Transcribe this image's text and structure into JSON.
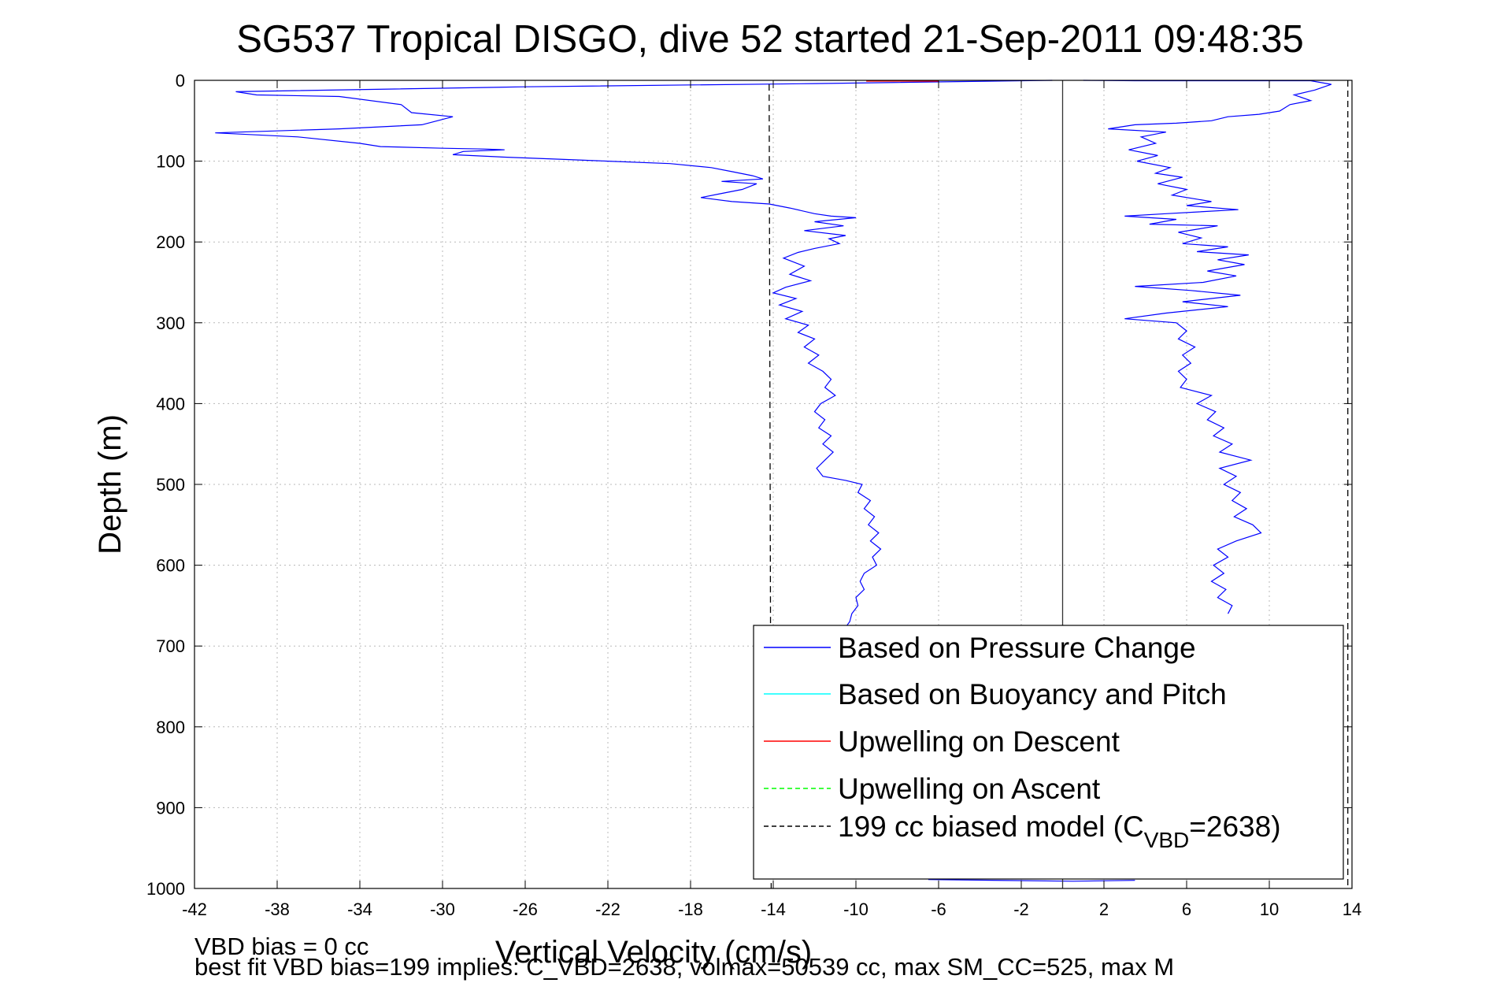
{
  "chart_data": {
    "type": "line",
    "title": "SG537 Tropical DISGO, dive 52 started 21-Sep-2011 09:48:35",
    "xlabel": "Vertical Velocity (cm/s)",
    "ylabel": "Depth (m)",
    "xlim": [
      -42,
      14
    ],
    "ylim": [
      0,
      1000
    ],
    "y_reversed": true,
    "grid": true,
    "x_ticks": [
      -42,
      -38,
      -34,
      -30,
      -26,
      -22,
      -18,
      -14,
      -10,
      -6,
      -2,
      2,
      6,
      10,
      14
    ],
    "y_ticks": [
      0,
      100,
      200,
      300,
      400,
      500,
      600,
      700,
      800,
      900,
      1000
    ],
    "legend_position": "bottom-right",
    "legend": [
      {
        "label": "Based on Pressure Change",
        "color": "#0000ff",
        "dash": "solid"
      },
      {
        "label": "Based on Buoyancy and Pitch",
        "color": "#00ffff",
        "dash": "solid"
      },
      {
        "label": "Upwelling on Descent",
        "color": "#ff0000",
        "dash": "solid"
      },
      {
        "label": "Upwelling on Ascent",
        "color": "#00ff00",
        "dash": "dashed"
      },
      {
        "label_main": "199 cc biased model (C",
        "label_sub": "VBD",
        "label_tail": "=2638)",
        "color": "#000000",
        "dash": "dashed"
      }
    ],
    "series": [
      {
        "name": "Based on Pressure Change",
        "segment": "descent",
        "color": "#0000ff",
        "points": [
          [
            -0.5,
            0
          ],
          [
            -12,
            4
          ],
          [
            -26,
            8
          ],
          [
            -40,
            14
          ],
          [
            -39,
            18
          ],
          [
            -35,
            20
          ],
          [
            -32,
            30
          ],
          [
            -31.5,
            40
          ],
          [
            -29.5,
            45
          ],
          [
            -31,
            55
          ],
          [
            -35,
            60
          ],
          [
            -41,
            65
          ],
          [
            -37,
            70
          ],
          [
            -34,
            78
          ],
          [
            -33,
            82
          ],
          [
            -30,
            84
          ],
          [
            -28,
            85
          ],
          [
            -27,
            86
          ],
          [
            -29,
            88
          ],
          [
            -29.5,
            92
          ],
          [
            -27,
            95
          ],
          [
            -24,
            98
          ],
          [
            -22,
            100
          ],
          [
            -19,
            103
          ],
          [
            -17,
            108
          ],
          [
            -16,
            113
          ],
          [
            -15,
            118
          ],
          [
            -14.5,
            122
          ],
          [
            -16.5,
            125
          ],
          [
            -14.8,
            128
          ],
          [
            -15.5,
            135
          ],
          [
            -16.5,
            140
          ],
          [
            -17.5,
            145
          ],
          [
            -16,
            150
          ],
          [
            -14.2,
            153
          ],
          [
            -13.2,
            158
          ],
          [
            -12,
            165
          ],
          [
            -11.2,
            168
          ],
          [
            -10,
            170
          ],
          [
            -12,
            175
          ],
          [
            -10.6,
            180
          ],
          [
            -12.5,
            186
          ],
          [
            -10.5,
            192
          ],
          [
            -11.3,
            196
          ],
          [
            -10.8,
            202
          ],
          [
            -12,
            208
          ],
          [
            -12.8,
            213
          ],
          [
            -13.5,
            220
          ],
          [
            -12.5,
            230
          ],
          [
            -13.2,
            240
          ],
          [
            -12.2,
            248
          ],
          [
            -13.4,
            256
          ],
          [
            -14,
            263
          ],
          [
            -12.9,
            270
          ],
          [
            -13.7,
            278
          ],
          [
            -12.6,
            286
          ],
          [
            -13.4,
            295
          ],
          [
            -12.3,
            303
          ],
          [
            -12.8,
            312
          ],
          [
            -12,
            320
          ],
          [
            -12.5,
            330
          ],
          [
            -11.8,
            340
          ],
          [
            -12.3,
            350
          ],
          [
            -11.6,
            360
          ],
          [
            -11.2,
            370
          ],
          [
            -11.5,
            380
          ],
          [
            -11,
            390
          ],
          [
            -11.7,
            400
          ],
          [
            -12,
            410
          ],
          [
            -11.5,
            420
          ],
          [
            -11.8,
            430
          ],
          [
            -11.2,
            440
          ],
          [
            -11.6,
            450
          ],
          [
            -11.1,
            460
          ],
          [
            -11.5,
            470
          ],
          [
            -11.9,
            480
          ],
          [
            -11.6,
            490
          ],
          [
            -10.5,
            495
          ],
          [
            -9.7,
            500
          ],
          [
            -9.9,
            510
          ],
          [
            -9.3,
            520
          ],
          [
            -9.6,
            530
          ],
          [
            -9.1,
            540
          ],
          [
            -9.4,
            550
          ],
          [
            -8.9,
            560
          ],
          [
            -9.3,
            570
          ],
          [
            -8.8,
            580
          ],
          [
            -9.2,
            590
          ],
          [
            -9,
            600
          ],
          [
            -9.6,
            610
          ],
          [
            -9.8,
            620
          ],
          [
            -9.6,
            630
          ],
          [
            -10,
            640
          ],
          [
            -9.9,
            650
          ],
          [
            -10.2,
            660
          ],
          [
            -10.3,
            670
          ],
          [
            -10.6,
            680
          ]
        ]
      },
      {
        "name": "Based on Pressure Change",
        "segment": "ascent",
        "color": "#0000ff",
        "points": [
          [
            1,
            0
          ],
          [
            3.5,
            0.5
          ],
          [
            12,
            0.5
          ],
          [
            13,
            5
          ],
          [
            12.2,
            12
          ],
          [
            11.2,
            18
          ],
          [
            12,
            25
          ],
          [
            11,
            30
          ],
          [
            10.5,
            38
          ],
          [
            9.5,
            42
          ],
          [
            8,
            45
          ],
          [
            7.2,
            50
          ],
          [
            5.5,
            53
          ],
          [
            3.5,
            55
          ],
          [
            2.2,
            60
          ],
          [
            5,
            64
          ],
          [
            3.8,
            70
          ],
          [
            4.5,
            78
          ],
          [
            3.2,
            86
          ],
          [
            4.6,
            93
          ],
          [
            3.6,
            100
          ],
          [
            5.2,
            108
          ],
          [
            4.5,
            115
          ],
          [
            5.8,
            120
          ],
          [
            4.6,
            128
          ],
          [
            6,
            135
          ],
          [
            5.3,
            142
          ],
          [
            7.2,
            150
          ],
          [
            6,
            155
          ],
          [
            8.5,
            160
          ],
          [
            5,
            165
          ],
          [
            3,
            168
          ],
          [
            5.5,
            172
          ],
          [
            4.2,
            178
          ],
          [
            7.5,
            180
          ],
          [
            5.6,
            188
          ],
          [
            6.7,
            195
          ],
          [
            5.8,
            202
          ],
          [
            8,
            206
          ],
          [
            6.5,
            212
          ],
          [
            9,
            216
          ],
          [
            7.5,
            222
          ],
          [
            8.8,
            228
          ],
          [
            7,
            236
          ],
          [
            8.4,
            242
          ],
          [
            6.8,
            250
          ],
          [
            3.5,
            255
          ],
          [
            6.2,
            260
          ],
          [
            8.6,
            266
          ],
          [
            5.8,
            274
          ],
          [
            8,
            280
          ],
          [
            5,
            288
          ],
          [
            3,
            295
          ],
          [
            5.5,
            300
          ],
          [
            6,
            310
          ],
          [
            5.6,
            320
          ],
          [
            6.4,
            330
          ],
          [
            5.8,
            340
          ],
          [
            6.2,
            350
          ],
          [
            5.6,
            360
          ],
          [
            6,
            370
          ],
          [
            5.7,
            380
          ],
          [
            7.2,
            390
          ],
          [
            6.5,
            400
          ],
          [
            7.4,
            410
          ],
          [
            7,
            420
          ],
          [
            7.8,
            430
          ],
          [
            7.3,
            440
          ],
          [
            8.2,
            450
          ],
          [
            7.6,
            460
          ],
          [
            9.1,
            470
          ],
          [
            7.6,
            480
          ],
          [
            8.4,
            490
          ],
          [
            7.8,
            500
          ],
          [
            8.6,
            510
          ],
          [
            8.2,
            520
          ],
          [
            8.9,
            530
          ],
          [
            8.3,
            540
          ],
          [
            9.2,
            550
          ],
          [
            9.6,
            560
          ],
          [
            8.4,
            570
          ],
          [
            7.5,
            580
          ],
          [
            8,
            590
          ],
          [
            7.3,
            600
          ],
          [
            7.8,
            610
          ],
          [
            7.2,
            620
          ],
          [
            7.9,
            630
          ],
          [
            7.5,
            640
          ],
          [
            8.2,
            650
          ],
          [
            8,
            660
          ]
        ]
      },
      {
        "name": "Based on Pressure Change",
        "segment": "bottom",
        "color": "#0000ff",
        "points": [
          [
            -6.5,
            989
          ],
          [
            0.5,
            991
          ],
          [
            3.5,
            990
          ]
        ]
      },
      {
        "name": "Upwelling on Descent",
        "color": "#ff0000",
        "points": [
          [
            -9.5,
            1
          ],
          [
            -6,
            1
          ]
        ]
      },
      {
        "name": "199 cc biased model",
        "color": "#000000",
        "dash": "dashed",
        "points": [
          [
            -14.2,
            5
          ],
          [
            -14.1,
            1000
          ]
        ]
      },
      {
        "name": "199 cc biased model",
        "color": "#000000",
        "dash": "dashed",
        "points": [
          [
            13.8,
            0
          ],
          [
            13.8,
            1000
          ]
        ]
      },
      {
        "name": "zero line",
        "color": "#333333",
        "dash": "solid",
        "points": [
          [
            0,
            0
          ],
          [
            0,
            1000
          ]
        ]
      }
    ]
  },
  "footnotes": {
    "line1": "VBD bias = 0 cc",
    "line2": "best fit VBD bias=199 implies: C_VBD=2638, volmax=50539 cc, max SM_CC=525, max M"
  }
}
